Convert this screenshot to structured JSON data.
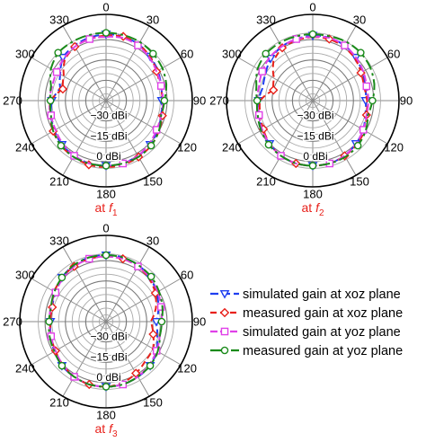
{
  "legend": [
    {
      "label": "simulated gain at xoz plane",
      "color": "#1f3ff0",
      "dash": "9,4",
      "marker": "triangle-down"
    },
    {
      "label": "measured gain at xoz plane",
      "color": "#e8211b",
      "dash": "7,4",
      "marker": "diamond"
    },
    {
      "label": "simulated gain at yoz plane",
      "color": "#e040e8",
      "dash": "8,3",
      "marker": "square"
    },
    {
      "label": "measured gain at yoz plane",
      "color": "#1a8a1a",
      "dash": "12,4,3,4",
      "marker": "circle"
    }
  ],
  "chart_data": [
    {
      "type": "polar",
      "caption_prefix": "at ",
      "caption_var": "f",
      "caption_sub": "1",
      "angle_ticks": [
        "0",
        "30",
        "60",
        "90",
        "120",
        "150",
        "180",
        "210",
        "240",
        "270",
        "300",
        "330"
      ],
      "radial_labels": [
        "−30 dBi",
        "−15 dBi",
        "0 dBi"
      ],
      "radial_label_values": [
        -30,
        -15,
        0
      ],
      "rlim": [
        -45,
        10
      ],
      "grid": true,
      "theta_deg": [
        0,
        15,
        30,
        45,
        60,
        75,
        90,
        105,
        120,
        135,
        150,
        165,
        180,
        195,
        210,
        225,
        240,
        255,
        270,
        285,
        300,
        315,
        330,
        345
      ],
      "series": [
        {
          "name": "simulated gain at xoz plane",
          "r": [
            4,
            4,
            3,
            1,
            -1,
            -3,
            -4,
            -3,
            -1,
            1,
            2,
            3,
            3,
            3,
            2,
            1,
            -1,
            -3,
            -5,
            -10,
            -6,
            0,
            2,
            3
          ]
        },
        {
          "name": "measured gain at xoz plane",
          "r": [
            3,
            4,
            3,
            1,
            -2,
            -4,
            -3,
            -2,
            0,
            2,
            3,
            4,
            4,
            4,
            3,
            2,
            0,
            -2,
            -4,
            -12,
            -9,
            -2,
            1,
            2
          ]
        },
        {
          "name": "simulated gain at yoz plane",
          "r": [
            2,
            3,
            2,
            0,
            -2,
            -3,
            -3,
            -3,
            -2,
            0,
            2,
            3,
            3,
            3,
            2,
            0,
            -2,
            -3,
            -3,
            -4,
            -3,
            -1,
            1,
            2
          ]
        },
        {
          "name": "measured gain at yoz plane",
          "r": [
            5,
            5,
            5,
            4,
            3,
            1,
            -2,
            -3,
            0,
            2,
            3,
            3,
            3,
            3,
            3,
            2,
            0,
            -3,
            -4,
            -3,
            2,
            5,
            5,
            5
          ]
        }
      ]
    },
    {
      "type": "polar",
      "caption_prefix": "at ",
      "caption_var": "f",
      "caption_sub": "2",
      "angle_ticks": [
        "0",
        "30",
        "60",
        "90",
        "120",
        "150",
        "180",
        "210",
        "240",
        "270",
        "300",
        "330"
      ],
      "radial_labels": [
        "−30 dBi",
        "−15 dBi",
        "0 dBi"
      ],
      "radial_label_values": [
        -30,
        -15,
        0
      ],
      "rlim": [
        -45,
        10
      ],
      "grid": true,
      "theta_deg": [
        0,
        15,
        30,
        45,
        60,
        75,
        90,
        105,
        120,
        135,
        150,
        165,
        180,
        195,
        210,
        225,
        240,
        255,
        270,
        285,
        300,
        315,
        330,
        345
      ],
      "series": [
        {
          "name": "simulated gain at xoz plane",
          "r": [
            3,
            3,
            2,
            0,
            -3,
            -5,
            -6,
            -5,
            -2,
            0,
            2,
            3,
            3,
            3,
            2,
            0,
            -2,
            -4,
            -5,
            -7,
            -5,
            -1,
            1,
            2
          ]
        },
        {
          "name": "measured gain at xoz plane",
          "r": [
            2,
            2,
            1,
            -1,
            -4,
            -6,
            -5,
            -4,
            -1,
            1,
            2,
            3,
            3,
            3,
            2,
            0,
            -3,
            -5,
            -6,
            -15,
            -12,
            -4,
            0,
            1
          ]
        },
        {
          "name": "simulated gain at yoz plane",
          "r": [
            2,
            3,
            2,
            0,
            -2,
            -4,
            -4,
            -4,
            -2,
            0,
            2,
            3,
            3,
            3,
            2,
            0,
            -2,
            -4,
            -4,
            -4,
            -2,
            0,
            1,
            2
          ]
        },
        {
          "name": "measured gain at yoz plane",
          "r": [
            4,
            4,
            5,
            5,
            4,
            2,
            -1,
            -3,
            0,
            2,
            3,
            3,
            3,
            3,
            2,
            1,
            -1,
            -3,
            -4,
            -2,
            2,
            4,
            4,
            4
          ]
        }
      ]
    },
    {
      "type": "polar",
      "caption_prefix": "at ",
      "caption_var": "f",
      "caption_sub": "3",
      "angle_ticks": [
        "0",
        "30",
        "60",
        "90",
        "120",
        "150",
        "180",
        "210",
        "240",
        "270",
        "300",
        "330"
      ],
      "radial_labels": [
        "0 dBi",
        "−15 dBi",
        "−30 dBi"
      ],
      "radial_label_values": [
        0,
        -15,
        -30
      ],
      "rlim": [
        -45,
        10
      ],
      "grid": true,
      "theta_deg": [
        0,
        15,
        30,
        45,
        60,
        75,
        90,
        105,
        120,
        135,
        150,
        165,
        180,
        195,
        210,
        225,
        240,
        255,
        270,
        285,
        300,
        315,
        330,
        345
      ],
      "series": [
        {
          "name": "simulated gain at xoz plane",
          "r": [
            4,
            4,
            3,
            1,
            -2,
            -5,
            -8,
            -6,
            -2,
            1,
            2,
            3,
            3,
            3,
            2,
            1,
            -1,
            -3,
            -4,
            -4,
            -2,
            1,
            3,
            4
          ]
        },
        {
          "name": "measured gain at xoz plane",
          "r": [
            3,
            3,
            2,
            0,
            -3,
            -7,
            -12,
            -9,
            -5,
            -4,
            -1,
            2,
            3,
            3,
            2,
            0,
            -2,
            -3,
            -4,
            -4,
            -1,
            1,
            2,
            3
          ]
        },
        {
          "name": "simulated gain at yoz plane",
          "r": [
            3,
            3,
            2,
            1,
            -1,
            -3,
            -4,
            -4,
            -2,
            0,
            2,
            3,
            3,
            3,
            2,
            0,
            -2,
            -3,
            -3,
            -3,
            -2,
            0,
            2,
            3
          ]
        },
        {
          "name": "measured gain at yoz plane",
          "r": [
            4,
            4,
            3,
            2,
            0,
            -2,
            -4,
            -4,
            -1,
            1,
            2,
            3,
            3,
            3,
            2,
            1,
            -1,
            -2,
            -3,
            -3,
            -1,
            1,
            3,
            4
          ]
        }
      ]
    }
  ]
}
